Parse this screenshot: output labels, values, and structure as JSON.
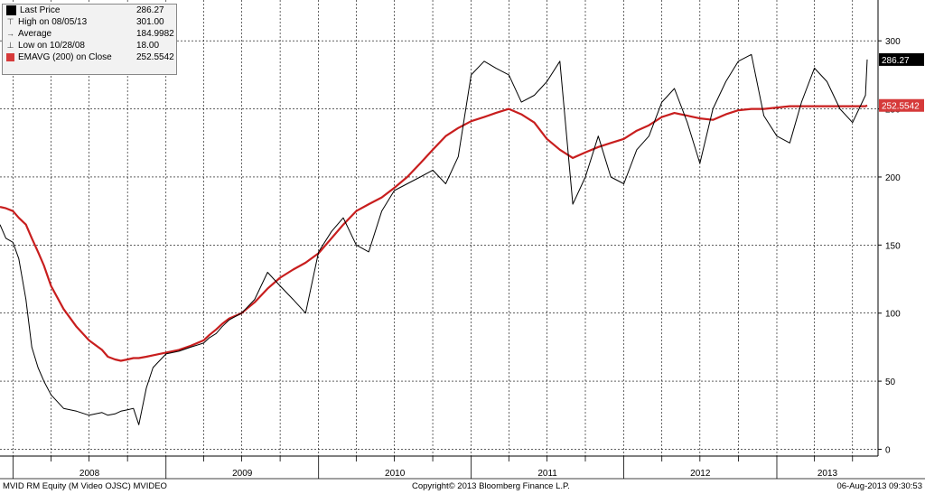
{
  "colors": {
    "price_line": "#000000",
    "ema_line": "#c81e1e",
    "grid": "#000000",
    "last_price_tag_bg": "#000000",
    "last_price_tag_text": "#ffffff",
    "ema_tag_bg": "#d63a3a",
    "ema_tag_text": "#ffffff"
  },
  "legend": {
    "items": [
      {
        "label": "Last Price",
        "value": "286.27",
        "icon": "black-square-icon",
        "color": "#000000"
      },
      {
        "label": "High on 08/05/13",
        "value": "301.00",
        "icon": "high-marker-icon"
      },
      {
        "label": "Average",
        "value": "184.9982",
        "icon": "average-marker-icon"
      },
      {
        "label": "Low on 10/28/08",
        "value": "18.00",
        "icon": "low-marker-icon"
      },
      {
        "label": "EMAVG (200) on Close",
        "value": "252.5542",
        "icon": "red-square-icon",
        "color": "#d63a3a"
      }
    ]
  },
  "value_tags": {
    "last_price": "286.27",
    "ema": "252.5542"
  },
  "footer": {
    "left": "MVID RM Equity (M Video OJSC) MVIDEO",
    "center": "Copyright© 2013 Bloomberg Finance L.P.",
    "right": "06-Aug-2013 09:30:53"
  },
  "chart_data": {
    "type": "line",
    "title": "",
    "xlabel": "",
    "ylabel": "",
    "ylim": [
      -5,
      330
    ],
    "y_ticks": [
      0,
      50,
      100,
      150,
      200,
      250,
      300
    ],
    "x_tick_labels": [
      "2008",
      "2009",
      "2010",
      "2011",
      "2012",
      "2013"
    ],
    "x_range": [
      "2007-12-01",
      "2013-08-31"
    ],
    "grid": true,
    "legend_position": "top-left",
    "x": [
      "2007-12-01",
      "2007-12-15",
      "2008-01-01",
      "2008-01-15",
      "2008-02-01",
      "2008-02-15",
      "2008-03-01",
      "2008-03-15",
      "2008-04-01",
      "2008-05-01",
      "2008-06-01",
      "2008-07-01",
      "2008-08-01",
      "2008-08-15",
      "2008-09-01",
      "2008-09-15",
      "2008-10-01",
      "2008-10-15",
      "2008-10-28",
      "2008-11-15",
      "2008-12-01",
      "2009-01-01",
      "2009-02-01",
      "2009-03-01",
      "2009-04-01",
      "2009-04-15",
      "2009-05-01",
      "2009-05-15",
      "2009-06-01",
      "2009-07-01",
      "2009-08-01",
      "2009-09-01",
      "2009-10-01",
      "2009-11-01",
      "2009-12-01",
      "2010-01-01",
      "2010-02-01",
      "2010-03-01",
      "2010-04-01",
      "2010-05-01",
      "2010-06-01",
      "2010-07-01",
      "2010-08-01",
      "2010-09-01",
      "2010-10-01",
      "2010-11-01",
      "2010-12-01",
      "2011-01-01",
      "2011-02-01",
      "2011-03-01",
      "2011-04-01",
      "2011-05-01",
      "2011-06-01",
      "2011-07-01",
      "2011-08-01",
      "2011-09-01",
      "2011-10-01",
      "2011-11-01",
      "2011-12-01",
      "2012-01-01",
      "2012-02-01",
      "2012-03-01",
      "2012-04-01",
      "2012-05-01",
      "2012-06-01",
      "2012-07-01",
      "2012-08-01",
      "2012-09-01",
      "2012-10-01",
      "2012-11-01",
      "2012-12-01",
      "2013-01-01",
      "2013-02-01",
      "2013-03-01",
      "2013-04-01",
      "2013-05-01",
      "2013-06-01",
      "2013-07-01",
      "2013-08-01",
      "2013-08-05"
    ],
    "series": [
      {
        "name": "Last Price",
        "values": [
          165,
          155,
          152,
          140,
          110,
          75,
          60,
          50,
          40,
          30,
          28,
          25,
          27,
          25,
          26,
          28,
          29,
          30,
          18,
          45,
          60,
          70,
          72,
          75,
          78,
          82,
          85,
          90,
          95,
          100,
          110,
          130,
          120,
          110,
          100,
          145,
          160,
          170,
          150,
          145,
          175,
          190,
          195,
          200,
          205,
          195,
          215,
          275,
          285,
          280,
          275,
          255,
          260,
          270,
          285,
          180,
          200,
          230,
          200,
          195,
          220,
          230,
          255,
          265,
          240,
          210,
          250,
          270,
          285,
          290,
          245,
          230,
          225,
          255,
          280,
          270,
          250,
          240,
          260,
          286.27
        ]
      },
      {
        "name": "EMAVG (200) on Close",
        "values": [
          178,
          177,
          175,
          170,
          165,
          155,
          145,
          135,
          120,
          103,
          90,
          80,
          73,
          68,
          66,
          65,
          66,
          67,
          67,
          68,
          69,
          71,
          73,
          76,
          80,
          84,
          88,
          92,
          96,
          100,
          108,
          118,
          126,
          132,
          137,
          144,
          155,
          165,
          175,
          180,
          185,
          192,
          200,
          210,
          220,
          230,
          236,
          241,
          244,
          247,
          250,
          246,
          240,
          228,
          220,
          214,
          218,
          222,
          225,
          228,
          234,
          238,
          244,
          247,
          245,
          243,
          242,
          246,
          249,
          250,
          250,
          251,
          252,
          252,
          252,
          252,
          252,
          252,
          252,
          252.5542
        ]
      }
    ]
  }
}
